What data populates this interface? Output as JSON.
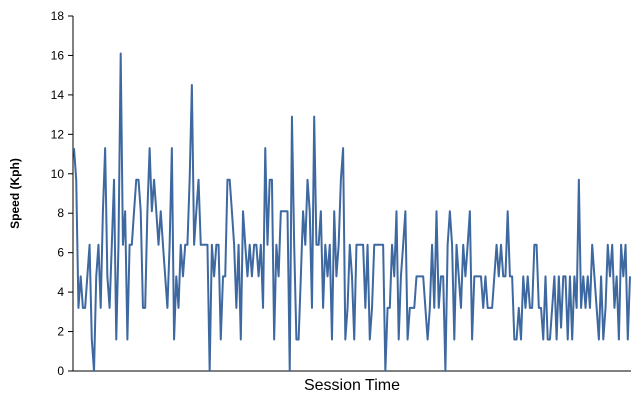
{
  "chart_data": {
    "type": "line",
    "title": "",
    "xlabel": "Session Time",
    "ylabel": "Speed (Kph)",
    "ylim": [
      0,
      18
    ],
    "yticks": [
      0,
      2,
      4,
      6,
      8,
      10,
      12,
      14,
      16,
      18
    ],
    "grid": false,
    "legend": "none",
    "line_color": "#3e68a0",
    "series": [
      {
        "values": [
          11.3,
          9.7,
          3.2,
          4.8,
          3.2,
          3.2,
          4.8,
          6.4,
          1.6,
          0,
          4.8,
          6.4,
          3.2,
          8.1,
          11.3,
          4.8,
          3.2,
          6.4,
          9.7,
          1.6,
          6.4,
          16.1,
          6.4,
          8.1,
          1.6,
          6.4,
          6.4,
          8.1,
          9.7,
          9.7,
          8.1,
          3.2,
          3.2,
          8.1,
          11.3,
          8.1,
          9.7,
          8.1,
          6.4,
          8.1,
          6.4,
          4.8,
          3.2,
          6.4,
          11.3,
          1.6,
          4.8,
          3.2,
          6.4,
          4.8,
          6.4,
          6.4,
          9.7,
          14.5,
          6.4,
          8.1,
          9.7,
          6.4,
          6.4,
          6.4,
          6.4,
          0,
          6.4,
          4.8,
          6.4,
          6.4,
          1.6,
          4.8,
          4.8,
          9.7,
          9.7,
          8.1,
          6.4,
          3.2,
          6.4,
          1.6,
          8.1,
          6.4,
          4.8,
          6.4,
          4.8,
          6.4,
          6.4,
          4.8,
          6.4,
          3.2,
          11.3,
          6.4,
          9.7,
          9.7,
          1.6,
          6.4,
          4.8,
          8.1,
          8.1,
          8.1,
          8.1,
          0,
          12.9,
          6.4,
          1.6,
          1.6,
          4.8,
          8.1,
          6.4,
          9.7,
          8.1,
          3.2,
          12.9,
          6.4,
          6.4,
          8.1,
          3.2,
          6.4,
          4.8,
          6.4,
          1.6,
          8.1,
          4.8,
          6.4,
          9.7,
          11.3,
          1.6,
          3.2,
          6.4,
          4.8,
          1.6,
          6.4,
          6.4,
          6.4,
          6.4,
          3.2,
          6.4,
          1.6,
          3.2,
          6.4,
          6.4,
          6.4,
          6.4,
          6.4,
          0,
          3.2,
          3.2,
          6.4,
          4.8,
          8.1,
          1.6,
          4.8,
          6.4,
          8.1,
          1.6,
          3.2,
          3.2,
          3.2,
          4.8,
          4.8,
          4.8,
          4.8,
          3.2,
          1.6,
          3.2,
          6.4,
          3.2,
          8.1,
          3.2,
          4.8,
          4.8,
          0,
          6.4,
          8.1,
          6.4,
          1.6,
          6.4,
          4.8,
          3.2,
          6.4,
          4.8,
          6.4,
          8.1,
          1.6,
          4.8,
          4.8,
          4.8,
          4.8,
          3.2,
          4.8,
          3.2,
          3.2,
          3.2,
          4.8,
          6.4,
          4.8,
          6.4,
          4.8,
          4.8,
          8.1,
          4.8,
          4.8,
          1.6,
          1.6,
          3.2,
          1.6,
          4.8,
          3.2,
          4.8,
          3.2,
          3.2,
          6.4,
          6.4,
          3.2,
          3.2,
          1.6,
          4.8,
          1.6,
          1.6,
          3.2,
          4.8,
          1.6,
          4.8,
          2.2,
          4.8,
          4.8,
          1.6,
          4.8,
          1.6,
          4.8,
          3.2,
          9.7,
          3.2,
          4.8,
          3.2,
          4.8,
          3.2,
          6.4,
          4.8,
          3.2,
          1.6,
          4.8,
          1.6,
          3.2,
          6.4,
          4.8,
          6.4,
          3.2,
          4.8,
          1.6,
          6.4,
          4.8,
          6.4,
          1.6,
          4.8
        ]
      }
    ]
  }
}
